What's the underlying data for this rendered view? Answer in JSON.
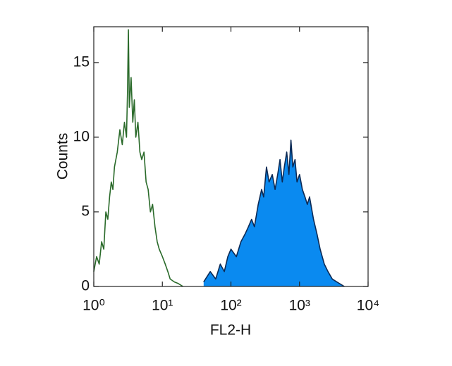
{
  "chart_data": {
    "type": "histogram-overlay",
    "x_label": "FL2-H",
    "y_label": "Counts",
    "xscale": "log",
    "xlim": [
      1,
      10000
    ],
    "ylim": [
      0,
      17.4
    ],
    "xticks": [
      {
        "value": 1,
        "label": "10⁰"
      },
      {
        "value": 10,
        "label": "10¹"
      },
      {
        "value": 100,
        "label": "10²"
      },
      {
        "value": 1000,
        "label": "10³"
      },
      {
        "value": 10000,
        "label": "10⁴"
      }
    ],
    "yticks": [
      0,
      5,
      10,
      15
    ],
    "series": [
      {
        "color": "#2a6a2a",
        "filled": false,
        "x": [
          1.0,
          1.1,
          1.2,
          1.3,
          1.4,
          1.5,
          1.6,
          1.7,
          1.8,
          1.9,
          2.0,
          2.2,
          2.4,
          2.6,
          2.8,
          3.0,
          3.1,
          3.2,
          3.3,
          3.5,
          3.7,
          3.9,
          4.1,
          4.4,
          4.7,
          5.0,
          5.4,
          5.8,
          6.2,
          6.7,
          7.2,
          7.8,
          8.4,
          9.0,
          10,
          11,
          12,
          13,
          15,
          17,
          20
        ],
        "values": [
          1,
          2,
          1.5,
          3,
          2.5,
          5,
          4.5,
          6,
          7,
          6.5,
          8,
          9,
          10.5,
          9.5,
          11,
          10,
          13,
          17.2,
          12,
          14,
          11,
          12.5,
          10,
          11,
          9,
          8.5,
          9,
          7,
          6.5,
          5,
          5.5,
          4,
          3,
          2.5,
          2,
          1.5,
          1,
          0.5,
          0.3,
          0.2,
          0
        ]
      },
      {
        "color": "#0a8af0",
        "edge_color": "#0c2a55",
        "filled": true,
        "x": [
          40,
          50,
          60,
          70,
          80,
          90,
          100,
          120,
          140,
          160,
          180,
          200,
          220,
          250,
          280,
          300,
          330,
          360,
          400,
          440,
          480,
          520,
          560,
          600,
          650,
          700,
          750,
          800,
          860,
          920,
          1000,
          1100,
          1200,
          1300,
          1400,
          1600,
          1800,
          2000,
          2300,
          2600,
          3000,
          3500,
          4500
        ],
        "values": [
          0.3,
          1,
          0.5,
          1.5,
          1,
          2,
          2.5,
          2,
          3,
          3.5,
          4,
          4.5,
          4,
          5.5,
          6.5,
          6,
          8,
          7,
          7.5,
          6.5,
          7.5,
          8.5,
          7,
          8,
          9,
          7.5,
          9.8,
          8,
          8.5,
          7,
          7.5,
          6.5,
          6,
          5.5,
          6,
          4.5,
          3.5,
          2.5,
          1.5,
          1,
          0.5,
          0.3,
          0
        ]
      }
    ]
  }
}
